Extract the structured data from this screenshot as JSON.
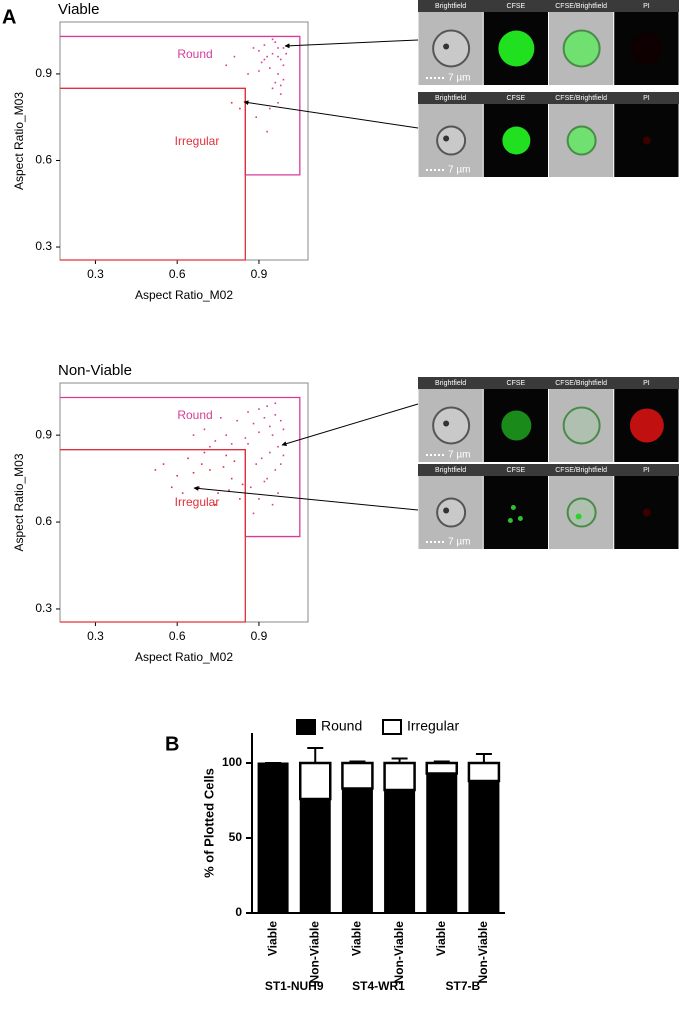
{
  "panels": [
    "A",
    "B"
  ],
  "images": {
    "channels": [
      "Brightfield",
      "CFSE",
      "CFSE/Brightfield",
      "PI"
    ],
    "scale_label": "7 µm"
  },
  "chart_data": [
    {
      "type": "scatter",
      "title": "Viable",
      "x_label": "Aspect Ratio_M02",
      "y_label": "Aspect Ratio_M03",
      "xlim": [
        0.17,
        1.08
      ],
      "ylim": [
        0.255,
        1.08
      ],
      "xticks": [
        0.3,
        0.6,
        0.9
      ],
      "yticks": [
        0.3,
        0.6,
        0.9
      ],
      "series": [
        {
          "name": "Round",
          "color": "#d63c9a",
          "gate_x": [
            0.17,
            1.05,
            1.05,
            0.85,
            0.85,
            0.17
          ],
          "gate_y": [
            1.03,
            1.03,
            0.55,
            0.55,
            0.85,
            0.85
          ],
          "x": [
            0.9,
            0.92,
            0.95,
            0.97,
            0.98,
            0.99,
            0.96,
            0.93,
            0.94,
            0.97,
            0.99,
            1.0,
            0.95,
            0.91,
            0.88,
            0.96,
            0.98,
            0.97,
            0.94,
            0.92,
            0.99,
            0.97,
            0.95,
            0.9,
            0.98,
            0.78,
            0.81,
            0.86,
            0.89,
            0.93
          ],
          "values": [
            0.98,
            1.0,
            0.97,
            0.99,
            0.95,
            0.93,
            1.01,
            0.96,
            0.92,
            0.9,
            0.88,
            0.97,
            0.85,
            0.94,
            0.99,
            0.87,
            0.83,
            0.8,
            0.78,
            0.95,
            0.99,
            0.96,
            1.02,
            0.91,
            0.86,
            0.93,
            0.96,
            0.9,
            0.75,
            0.7
          ]
        },
        {
          "name": "Irregular",
          "color": "#e0303a",
          "gate_x": [
            0.17,
            0.85,
            0.85,
            0.17
          ],
          "gate_y": [
            0.85,
            0.85,
            0.255,
            0.255
          ],
          "x": [
            0.8,
            0.83
          ],
          "values": [
            0.8,
            0.78
          ]
        }
      ]
    },
    {
      "type": "scatter",
      "title": "Non-Viable",
      "x_label": "Aspect Ratio_M02",
      "y_label": "Aspect Ratio_M03",
      "xlim": [
        0.17,
        1.08
      ],
      "ylim": [
        0.255,
        1.08
      ],
      "xticks": [
        0.3,
        0.6,
        0.9
      ],
      "yticks": [
        0.3,
        0.6,
        0.9
      ],
      "series": [
        {
          "name": "Round",
          "color": "#d63c9a",
          "gate_x": [
            0.17,
            1.05,
            1.05,
            0.85,
            0.85,
            0.17
          ],
          "gate_y": [
            1.03,
            1.03,
            0.55,
            0.55,
            0.85,
            0.85
          ],
          "x": [
            0.9,
            0.93,
            0.96,
            0.98,
            0.99,
            0.95,
            0.92,
            0.88,
            0.86,
            0.97,
            0.94,
            0.91,
            0.89,
            0.96,
            0.99,
            0.93,
            0.87,
            0.82,
            0.78,
            0.74,
            0.7,
            0.85,
            0.8,
            0.76,
            0.97,
            0.95,
            0.9,
            0.88,
            0.92,
            0.98,
            0.94,
            0.86,
            0.9,
            0.96,
            0.72,
            0.66
          ],
          "values": [
            0.99,
            1.0,
            0.97,
            0.95,
            0.92,
            0.9,
            0.96,
            0.94,
            0.98,
            0.86,
            0.84,
            0.82,
            0.8,
            0.78,
            0.83,
            0.75,
            0.72,
            0.95,
            0.9,
            0.88,
            0.92,
            0.89,
            0.87,
            0.96,
            0.7,
            0.66,
            0.68,
            0.63,
            0.74,
            0.8,
            0.93,
            0.87,
            0.91,
            1.01,
            0.86,
            0.9
          ]
        },
        {
          "name": "Irregular",
          "color": "#e0303a",
          "gate_x": [
            0.17,
            0.85,
            0.85,
            0.17
          ],
          "gate_y": [
            0.85,
            0.85,
            0.255,
            0.255
          ],
          "x": [
            0.55,
            0.6,
            0.64,
            0.68,
            0.72,
            0.75,
            0.78,
            0.8,
            0.83,
            0.58,
            0.62,
            0.7,
            0.74,
            0.77,
            0.81,
            0.66,
            0.52,
            0.84,
            0.69,
            0.79
          ],
          "values": [
            0.8,
            0.76,
            0.82,
            0.72,
            0.78,
            0.7,
            0.83,
            0.75,
            0.68,
            0.72,
            0.7,
            0.84,
            0.66,
            0.79,
            0.81,
            0.77,
            0.78,
            0.73,
            0.8,
            0.71
          ]
        }
      ]
    },
    {
      "type": "bar",
      "y_label": "% of Plotted Cells",
      "legend": "top",
      "categories": [
        "Viable",
        "Non-Viable",
        "Viable",
        "Non-Viable",
        "Viable",
        "Non-Viable"
      ],
      "groups": [
        "ST1-NUH9",
        "ST4-WR1",
        "ST7-B"
      ],
      "ylim": [
        0,
        120
      ],
      "yticks": [
        0,
        50,
        100
      ],
      "series": [
        {
          "name": "Round",
          "color": "#000000",
          "values": [
            100,
            76,
            83,
            82,
            93,
            88
          ],
          "errors": [
            0,
            9,
            0.5,
            2,
            1,
            5
          ]
        },
        {
          "name": "Irregular",
          "color": "#ffffff",
          "values": [
            0,
            24,
            17,
            18,
            7,
            12
          ],
          "errors": [
            0,
            10,
            1,
            3,
            1,
            6
          ]
        }
      ]
    }
  ]
}
